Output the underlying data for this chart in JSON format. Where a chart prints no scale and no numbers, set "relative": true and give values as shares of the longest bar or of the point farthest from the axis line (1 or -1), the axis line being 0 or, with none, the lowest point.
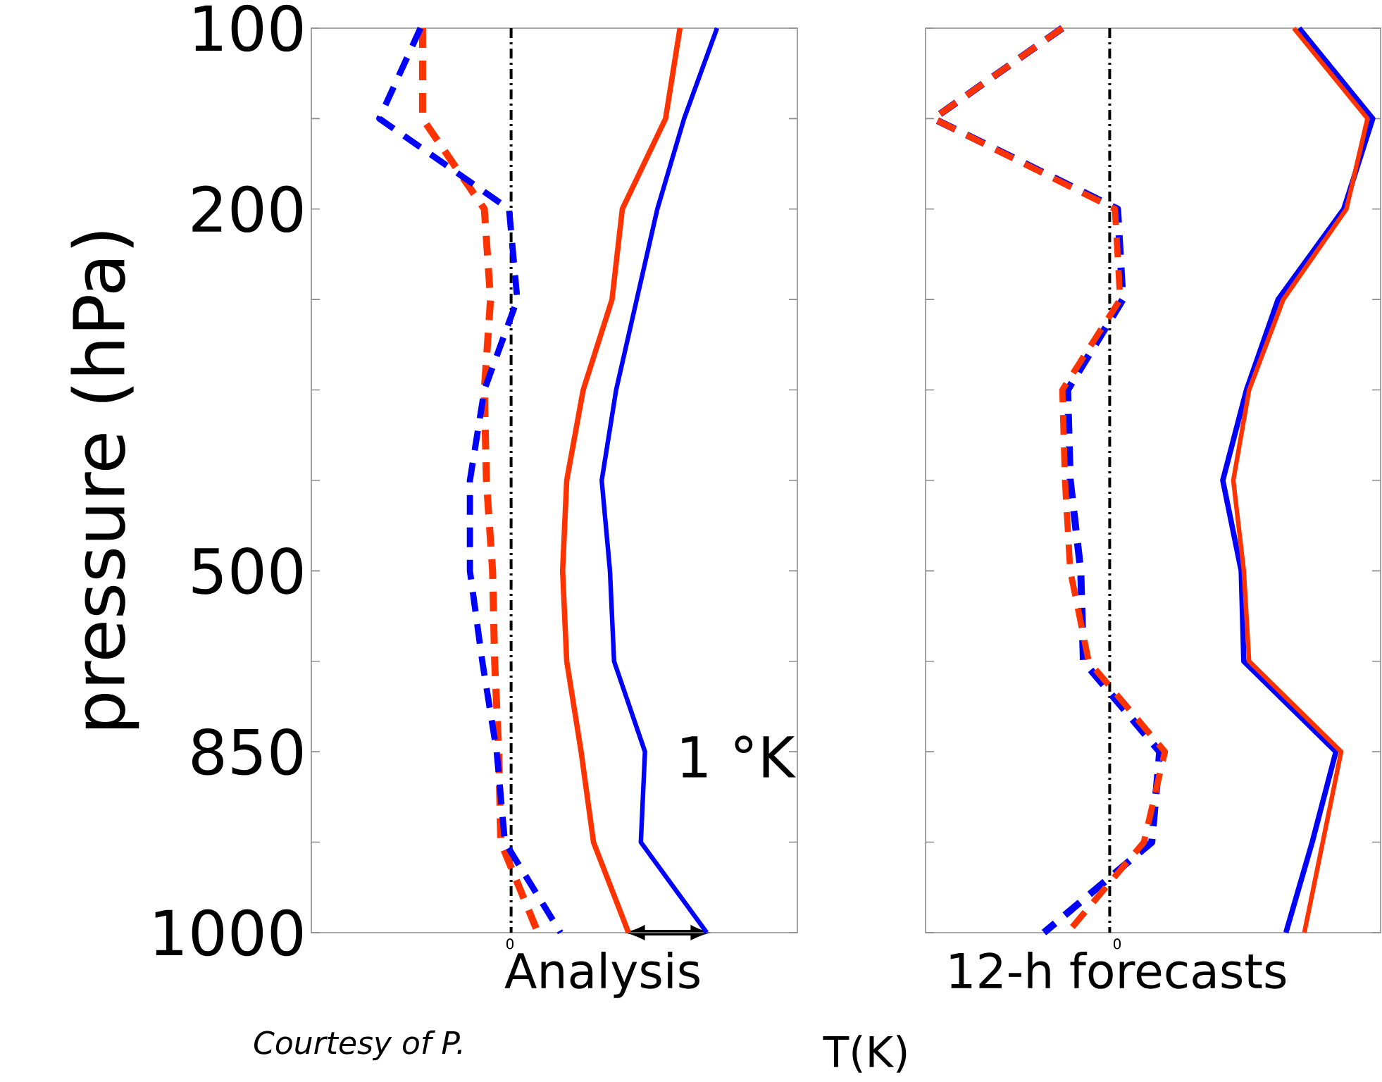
{
  "chart_data": [
    {
      "type": "line",
      "orientation": "horizontal",
      "relative": true,
      "xlabel": "Analysis",
      "ylabel": "pressure (hPa)",
      "categories": [
        "100",
        null,
        "200",
        null,
        null,
        null,
        "500",
        null,
        "850",
        null,
        "1000"
      ],
      "ref_lines": [
        {
          "axis": "x",
          "value": 0,
          "color": "#000000",
          "line_style": "dashdot"
        }
      ],
      "annotations": [
        "1 °K",
        "T(K)",
        "*Courtesy of P.*",
        "0"
      ],
      "series": [
        {
          "color": "#ff3300",
          "line_style": "dashed",
          "values": [
            -0.43,
            -0.43,
            -0.13,
            -0.1,
            -0.13,
            -0.12,
            -0.09,
            -0.08,
            -0.06,
            -0.05,
            0.13
          ]
        },
        {
          "color": "#0000ff",
          "line_style": "dashed",
          "values": [
            -0.44,
            -0.64,
            -0.01,
            0.03,
            -0.13,
            -0.2,
            -0.2,
            -0.14,
            -0.07,
            -0.03,
            0.24
          ]
        },
        {
          "color": "#ff3300",
          "line_style": "solid",
          "values": [
            0.82,
            0.75,
            0.54,
            0.49,
            0.35,
            0.27,
            0.25,
            0.27,
            0.34,
            0.4,
            0.57
          ]
        },
        {
          "color": "#0000ff",
          "line_style": "solid",
          "values": [
            1.0,
            0.84,
            0.71,
            0.61,
            0.51,
            0.44,
            0.48,
            0.5,
            0.65,
            0.63,
            0.95
          ]
        }
      ]
    },
    {
      "type": "line",
      "orientation": "horizontal",
      "relative": true,
      "xlabel": "12-h forecasts",
      "tick_labels": "x",
      "categories": [
        "100",
        null,
        "200",
        null,
        null,
        null,
        "500",
        null,
        "850",
        null,
        "1000"
      ],
      "ref_lines": [
        {
          "axis": "x",
          "value": 0,
          "color": "#000000",
          "line_style": "dashdot"
        }
      ],
      "annotations": [
        "0"
      ],
      "series": [
        {
          "color": "#0000ff",
          "line_style": "dashed",
          "values": [
            -0.18,
            -0.67,
            0.03,
            0.05,
            -0.16,
            -0.15,
            -0.11,
            -0.1,
            0.19,
            0.16,
            -0.25
          ]
        },
        {
          "color": "#ff3300",
          "line_style": "dashed",
          "values": [
            -0.18,
            -0.67,
            0.02,
            0.04,
            -0.18,
            -0.17,
            -0.15,
            -0.08,
            0.21,
            0.13,
            -0.16
          ]
        },
        {
          "color": "#0000ff",
          "line_style": "solid",
          "values": [
            0.72,
            1.0,
            0.89,
            0.64,
            0.52,
            0.43,
            0.5,
            0.51,
            0.86,
            0.77,
            0.67
          ]
        },
        {
          "color": "#ff3300",
          "line_style": "solid",
          "values": [
            0.7,
            0.98,
            0.9,
            0.66,
            0.53,
            0.47,
            0.51,
            0.53,
            0.88,
            0.81,
            0.74
          ]
        }
      ]
    }
  ]
}
